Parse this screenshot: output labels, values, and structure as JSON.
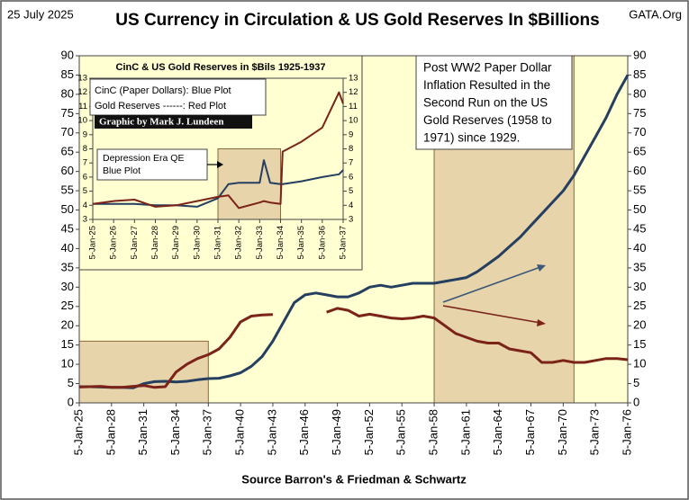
{
  "header": {
    "date": "25 July 2025",
    "site": "GATA.Org"
  },
  "chart_data": [
    {
      "type": "line",
      "title": "US Currency in Circulation & US Gold Reserves In $Billions",
      "xlabel": "Source Barron's & Friedman & Schwartz",
      "annotation": [
        "Post WW2 Paper Dollar",
        "Inflation Resulted in the",
        "Second Run on the US",
        "Gold Reserves (1958 to",
        "1971) since 1929."
      ],
      "x": [
        1925,
        1926,
        1927,
        1928,
        1929,
        1930,
        1931,
        1932,
        1933,
        1934,
        1935,
        1936,
        1937,
        1938,
        1939,
        1940,
        1941,
        1942,
        1943,
        1944,
        1945,
        1946,
        1947,
        1948,
        1949,
        1950,
        1951,
        1952,
        1953,
        1954,
        1955,
        1956,
        1957,
        1958,
        1959,
        1960,
        1961,
        1962,
        1963,
        1964,
        1965,
        1966,
        1967,
        1968,
        1969,
        1970,
        1971,
        1972,
        1973,
        1974,
        1975,
        1976
      ],
      "series": [
        {
          "name": "CinC",
          "color": "#243f60",
          "values": [
            4.2,
            4.2,
            4.1,
            4.0,
            4.0,
            3.9,
            5.0,
            5.5,
            5.6,
            5.4,
            5.6,
            6.0,
            6.3,
            6.4,
            7.0,
            7.8,
            9.5,
            12,
            16,
            21,
            26,
            28,
            28.5,
            28,
            27.5,
            27.5,
            28.5,
            30,
            30.5,
            30,
            30.5,
            31,
            31,
            31,
            31.5,
            32,
            32.5,
            34,
            36,
            38,
            40.5,
            43,
            46,
            49,
            52,
            55,
            59,
            64,
            69,
            74,
            80,
            85
          ]
        },
        {
          "name": "Gold Reserves",
          "color": "#7b2318",
          "values": [
            4.1,
            4.2,
            4.3,
            4.0,
            4.0,
            4.3,
            4.5,
            4.0,
            4.2,
            8,
            10,
            11.5,
            12.5,
            14,
            17,
            21,
            22.5,
            22.8,
            22.9,
            null,
            null,
            null,
            null,
            23.5,
            24.5,
            24,
            22.5,
            23,
            22.5,
            22,
            21.8,
            22,
            22.5,
            22,
            20,
            18,
            17,
            16,
            15.5,
            15.5,
            14,
            13.5,
            13,
            10.5,
            10.5,
            11,
            10.5,
            10.5,
            11,
            11.5,
            11.5,
            11.2
          ]
        }
      ],
      "highlights": [
        {
          "x": [
            1925,
            1937
          ],
          "y": [
            0,
            16
          ]
        },
        {
          "x": [
            1958,
            1971
          ],
          "y": [
            0,
            90
          ]
        }
      ],
      "xlim": [
        1925,
        1976
      ],
      "xticks": [
        {
          "value": 1925,
          "label": "5-Jan-25"
        },
        {
          "value": 1928,
          "label": "5-Jan-28"
        },
        {
          "value": 1931,
          "label": "5-Jan-31"
        },
        {
          "value": 1934,
          "label": "5-Jan-34"
        },
        {
          "value": 1937,
          "label": "5-Jan-37"
        },
        {
          "value": 1940,
          "label": "5-Jan-40"
        },
        {
          "value": 1943,
          "label": "5-Jan-43"
        },
        {
          "value": 1946,
          "label": "5-Jan-46"
        },
        {
          "value": 1949,
          "label": "5-Jan-49"
        },
        {
          "value": 1952,
          "label": "5-Jan-52"
        },
        {
          "value": 1955,
          "label": "5-Jan-55"
        },
        {
          "value": 1958,
          "label": "5-Jan-58"
        },
        {
          "value": 1961,
          "label": "5-Jan-61"
        },
        {
          "value": 1964,
          "label": "5-Jan-64"
        },
        {
          "value": 1967,
          "label": "5-Jan-67"
        },
        {
          "value": 1970,
          "label": "5-Jan-70"
        },
        {
          "value": 1973,
          "label": "5-Jan-73"
        },
        {
          "value": 1976,
          "label": "5-Jan-76"
        }
      ],
      "ylim": [
        0,
        90
      ],
      "yticks": [
        0,
        5,
        10,
        15,
        20,
        25,
        30,
        35,
        40,
        45,
        50,
        55,
        60,
        65,
        70,
        75,
        80,
        85,
        90
      ],
      "y2lim": [
        0,
        90
      ],
      "y2ticks": [
        0,
        5,
        10,
        15,
        20,
        25,
        30,
        35,
        40,
        45,
        50,
        55,
        60,
        65,
        70,
        75,
        80,
        85,
        90
      ]
    },
    {
      "type": "line",
      "title": "CinC & US Gold Reserves in $Bils 1925-1937",
      "legend": [
        "CinC (Paper Dollars):  Blue Plot",
        "Gold Reserves ------:  Red Plot"
      ],
      "credit": "Graphic by Mark J. Lundeen",
      "annotation": [
        "Depression Era QE",
        "Blue Plot"
      ],
      "x": [
        1925,
        1926,
        1927,
        1928,
        1929,
        1930,
        1931,
        1931.5,
        1932,
        1933,
        1933.2,
        1933.5,
        1934,
        1934.1,
        1935,
        1936,
        1936.8,
        1937
      ],
      "series": [
        {
          "name": "CinC",
          "color": "#243f60",
          "values": [
            4.1,
            4.1,
            4.1,
            4.0,
            4.0,
            3.9,
            4.5,
            5.5,
            5.6,
            5.6,
            7.2,
            5.6,
            5.5,
            5.5,
            5.7,
            6.0,
            6.2,
            6.5
          ]
        },
        {
          "name": "Gold Reserves",
          "color": "#7b2318",
          "values": [
            4.1,
            4.3,
            4.4,
            3.9,
            4.0,
            4.3,
            4.6,
            4.7,
            3.8,
            4.2,
            4.3,
            4.2,
            4.1,
            7.8,
            8.5,
            9.5,
            12,
            11.2
          ]
        }
      ],
      "highlights": [
        {
          "x": [
            1931,
            1934
          ],
          "y": [
            3,
            8
          ]
        }
      ],
      "xlim": [
        1925,
        1937
      ],
      "xticks": [
        {
          "value": 1925,
          "label": "5-Jan-25"
        },
        {
          "value": 1926,
          "label": "5-Jan-26"
        },
        {
          "value": 1927,
          "label": "5-Jan-27"
        },
        {
          "value": 1928,
          "label": "5-Jan-28"
        },
        {
          "value": 1929,
          "label": "5-Jan-29"
        },
        {
          "value": 1930,
          "label": "5-Jan-30"
        },
        {
          "value": 1931,
          "label": "5-Jan-31"
        },
        {
          "value": 1932,
          "label": "5-Jan-32"
        },
        {
          "value": 1933,
          "label": "5-Jan-33"
        },
        {
          "value": 1934,
          "label": "5-Jan-34"
        },
        {
          "value": 1935,
          "label": "5-Jan-35"
        },
        {
          "value": 1936,
          "label": "5-Jan-36"
        },
        {
          "value": 1937,
          "label": "5-Jan-37"
        }
      ],
      "ylim": [
        3,
        13
      ],
      "yticks": [
        3,
        4,
        5,
        6,
        7,
        8,
        9,
        10,
        11,
        12,
        13
      ],
      "y2lim": [
        3,
        13
      ],
      "y2ticks": [
        3,
        4,
        5,
        6,
        7,
        8,
        9,
        10,
        11,
        12,
        13
      ]
    }
  ]
}
